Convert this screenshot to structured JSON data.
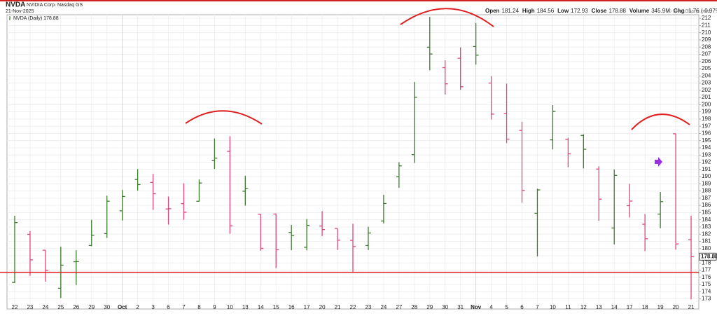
{
  "header": {
    "symbol": "NVDA",
    "name": "NVIDIA Corp. Nasdaq GS",
    "date": "21-Nov-2025",
    "quote": [
      {
        "label": "Open",
        "value": "181.24"
      },
      {
        "label": "High",
        "value": "184.56"
      },
      {
        "label": "Low",
        "value": "172.93"
      },
      {
        "label": "Close",
        "value": "178.88"
      },
      {
        "label": "Volume",
        "value": "345.9M"
      },
      {
        "label": "Chg",
        "value": "-1.76 (-0.97%)"
      }
    ],
    "credit": "© StockCharts.com"
  },
  "chart_data": {
    "type": "ohlc",
    "legend": "NVDA (Daily) 178.88",
    "categories": [
      "22",
      "23",
      "24",
      "25",
      "26",
      "29",
      "30",
      "Oct",
      "2",
      "3",
      "6",
      "7",
      "8",
      "9",
      "10",
      "13",
      "14",
      "15",
      "16",
      "17",
      "20",
      "21",
      "22",
      "23",
      "24",
      "27",
      "28",
      "29",
      "30",
      "31",
      "Nov",
      "4",
      "5",
      "6",
      "7",
      "10",
      "11",
      "12",
      "13",
      "14",
      "17",
      "18",
      "19",
      "20",
      "21"
    ],
    "month_starts": [
      "Oct",
      "Nov"
    ],
    "series": [
      {
        "name": "NVDA",
        "up_color": "#3c7a2e",
        "down_color": "#e0457b",
        "open": [
          175.3,
          181.97,
          179.77,
          174.48,
          178.17,
          180.43,
          182.08,
          185.24,
          189.6,
          189.19,
          185.5,
          186.23,
          186.57,
          192.23,
          193.51,
          187.97,
          184.77,
          184.8,
          182.23,
          180.18,
          183.13,
          182.79,
          181.14,
          180.42,
          183.83,
          189.99,
          193.05,
          207.98,
          205.15,
          206.45,
          208.08,
          203,
          198.76,
          196.42,
          184.9,
          195.11,
          195.16,
          195.72,
          191.05,
          182.86,
          185.97,
          183.38,
          184.79,
          195.95,
          181.24
        ],
        "high": [
          184.55,
          182.42,
          179.78,
          180.26,
          179.77,
          184,
          187.35,
          188.14,
          191.05,
          190.36,
          187.23,
          189.06,
          189.6,
          195.3,
          195.62,
          190.11,
          184.8,
          184.87,
          183.28,
          184.1,
          185.2,
          182.79,
          183.44,
          183.03,
          187.47,
          192,
          203.15,
          212.19,
          206.16,
          207.97,
          211.34,
          203.97,
          202.92,
          197.62,
          188.32,
          199.94,
          195.41,
          195.89,
          191.44,
          191.01,
          189,
          184.8,
          187.86,
          196,
          184.56
        ],
        "low": [
          175.2,
          176.21,
          175.4,
          173.13,
          174.93,
          180.32,
          181.48,
          183.9,
          188.06,
          185.38,
          183.33,
          184,
          186.54,
          191.06,
          182.05,
          185.96,
          179.7,
          177.29,
          179.77,
          179.75,
          181.73,
          179.8,
          176.76,
          179.79,
          183.5,
          188.43,
          191.91,
          204.78,
          201.41,
          202.07,
          205.56,
          197.93,
          194.65,
          186.38,
          178.91,
          193.79,
          191.3,
          191.13,
          183.85,
          180.58,
          184.32,
          179.65,
          182.83,
          179.85,
          172.93
        ],
        "close": [
          183.61,
          178.43,
          176.97,
          177.69,
          178.19,
          181.85,
          186.58,
          187.24,
          188.89,
          187.62,
          185.54,
          185.04,
          189.11,
          192.57,
          183.16,
          188.32,
          180.03,
          179.83,
          181.81,
          183.22,
          182.64,
          181.16,
          180.28,
          182.16,
          186.26,
          191.49,
          201.03,
          207.04,
          202.89,
          202.49,
          206.88,
          198.69,
          195.21,
          188.08,
          188.15,
          199.05,
          193.16,
          193.8,
          186.86,
          190.17,
          186.6,
          181.36,
          186.52,
          180.64,
          178.88
        ]
      }
    ],
    "last_price": 178.88,
    "hline": {
      "value": 176.7,
      "color": "#e02020"
    },
    "ylim": [
      171.6,
      212.5
    ],
    "yticks": [
      173,
      174,
      175,
      176,
      177,
      178,
      179,
      180,
      181,
      182,
      183,
      184,
      185,
      186,
      187,
      188,
      189,
      190,
      191,
      192,
      193,
      194,
      195,
      196,
      197,
      198,
      199,
      200,
      201,
      202,
      203,
      204,
      205,
      206,
      207,
      208,
      209,
      210,
      211,
      212
    ],
    "grid": true
  }
}
